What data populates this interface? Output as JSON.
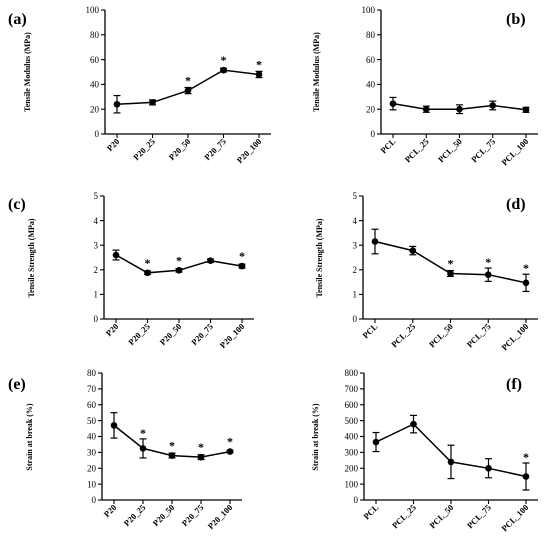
{
  "chart_data": [
    {
      "type": "line",
      "panel": "(a)",
      "ylabel": "Tensile Modulus (MPa)",
      "ylim": [
        0,
        100
      ],
      "yticks": [
        0,
        20,
        40,
        60,
        80,
        100
      ],
      "categories": [
        "P20",
        "P20_25",
        "P20_50",
        "P20_75",
        "P20_100"
      ],
      "values": [
        24,
        25.5,
        35,
        51.5,
        48
      ],
      "errors": [
        7,
        2,
        2.5,
        1.5,
        2.5
      ],
      "significant": [
        false,
        false,
        true,
        true,
        true
      ],
      "star": "*"
    },
    {
      "type": "line",
      "panel": "(b)",
      "ylabel": "Tensile Modulus (MPa)",
      "ylim": [
        0,
        100
      ],
      "yticks": [
        0,
        20,
        40,
        60,
        80,
        100
      ],
      "categories": [
        "PCL",
        "PCL_25",
        "PCL_50",
        "PCL_75",
        "PCL_100"
      ],
      "values": [
        24.5,
        20,
        20,
        23,
        19.5
      ],
      "errors": [
        5,
        2.5,
        3.5,
        3.5,
        2
      ],
      "significant": [
        false,
        false,
        false,
        false,
        false
      ],
      "star": "*"
    },
    {
      "type": "line",
      "panel": "(c)",
      "ylabel": "Tensile Strength (MPa)",
      "ylim": [
        0,
        5
      ],
      "yticks": [
        0,
        1,
        2,
        3,
        4,
        5
      ],
      "categories": [
        "P20",
        "P20_25",
        "P20_50",
        "P20_75",
        "P20_100"
      ],
      "values": [
        2.6,
        1.88,
        1.98,
        2.37,
        2.15
      ],
      "errors": [
        0.2,
        0.07,
        0.07,
        0.07,
        0.08
      ],
      "significant": [
        false,
        true,
        true,
        false,
        true
      ],
      "star": "*"
    },
    {
      "type": "line",
      "panel": "(d)",
      "ylabel": "Tensile Strength (MPa)",
      "ylim": [
        0,
        5
      ],
      "yticks": [
        0,
        1,
        2,
        3,
        4,
        5
      ],
      "categories": [
        "PCL",
        "PCL_25",
        "PCL_50",
        "PCL_75",
        "PCL_100"
      ],
      "values": [
        3.15,
        2.78,
        1.85,
        1.8,
        1.47
      ],
      "errors": [
        0.5,
        0.17,
        0.12,
        0.27,
        0.35
      ],
      "significant": [
        false,
        false,
        true,
        true,
        true
      ],
      "star": "*"
    },
    {
      "type": "line",
      "panel": "(e)",
      "ylabel": "Strain at break (%)",
      "ylim": [
        0,
        80
      ],
      "yticks": [
        0,
        10,
        20,
        30,
        40,
        50,
        60,
        70,
        80
      ],
      "categories": [
        "P20",
        "P20_25",
        "P20_50",
        "P20_75",
        "P20_100"
      ],
      "values": [
        47,
        32.5,
        28,
        27,
        30.5
      ],
      "errors": [
        8,
        6,
        1.5,
        1.5,
        0.8
      ],
      "significant": [
        false,
        true,
        true,
        true,
        true
      ],
      "star": "*"
    },
    {
      "type": "line",
      "panel": "(f)",
      "ylabel": "Strain at break (%)",
      "ylim": [
        0,
        800
      ],
      "yticks": [
        0,
        100,
        200,
        300,
        400,
        500,
        600,
        700,
        800
      ],
      "categories": [
        "PCL",
        "PCL_25",
        "PCL_50",
        "PCL_75",
        "PCL_100"
      ],
      "values": [
        365,
        478,
        240,
        200,
        148
      ],
      "errors": [
        60,
        55,
        105,
        60,
        85
      ],
      "significant": [
        false,
        false,
        false,
        false,
        true
      ],
      "star": "*"
    }
  ]
}
